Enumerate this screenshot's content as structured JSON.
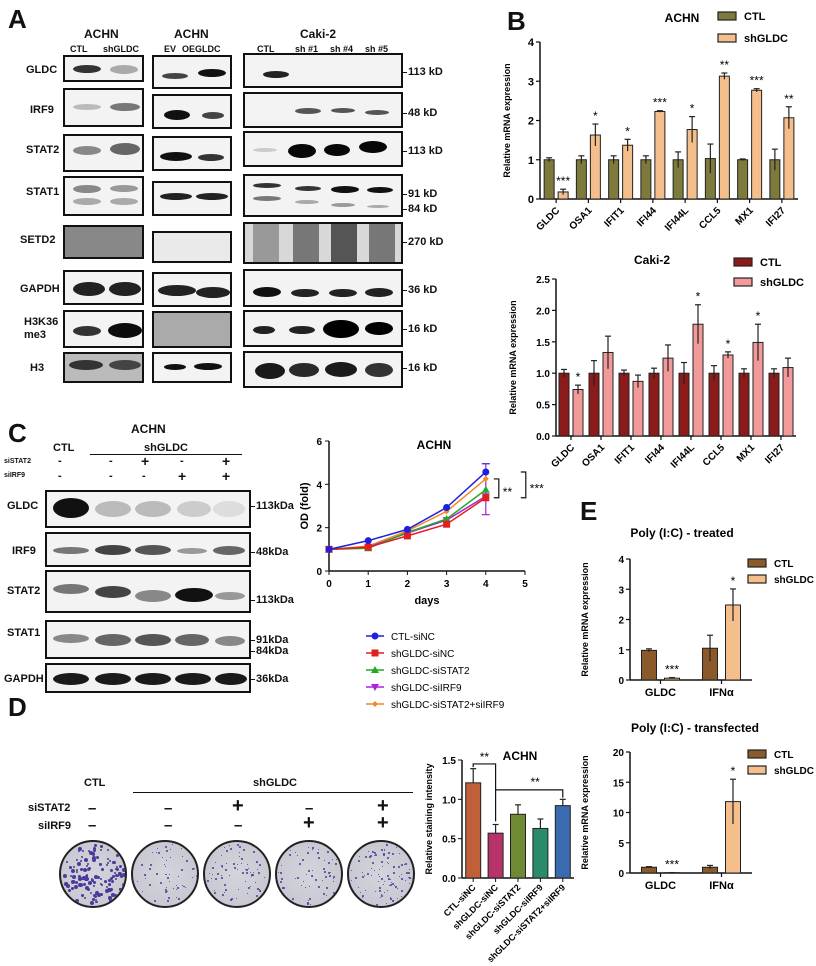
{
  "panels": {
    "A": {
      "letter": "A",
      "groups": [
        {
          "title": "ACHN",
          "lanes": [
            "CTL",
            "shGLDC"
          ]
        },
        {
          "title": "ACHN",
          "lanes": [
            "EV",
            "OEGLDC"
          ]
        },
        {
          "title": "Caki-2",
          "lanes": [
            "CTL",
            "sh #1",
            "sh #4",
            "sh #5"
          ]
        }
      ],
      "rows": [
        {
          "protein": "GLDC",
          "markers": [
            "113 kD"
          ]
        },
        {
          "protein": "IRF9",
          "markers": [
            "48 kD"
          ]
        },
        {
          "protein": "STAT2",
          "markers": [
            "113 kD"
          ]
        },
        {
          "protein": "STAT1",
          "markers": [
            "91 kD",
            "84 kD"
          ]
        },
        {
          "protein": "SETD2",
          "markers": [
            "270 kD"
          ]
        },
        {
          "protein": "GAPDH",
          "markers": [
            "36 kD"
          ]
        },
        {
          "protein": "H3K36\nme3",
          "protein_line1": "H3K36",
          "protein_line2": "me3",
          "markers": [
            "16 kD"
          ]
        },
        {
          "protein": "H3",
          "markers": [
            "16 kD"
          ]
        }
      ]
    },
    "B": {
      "letter": "B"
    },
    "C": {
      "letter": "C",
      "blot_title": "ACHN",
      "ctl_label": "CTL",
      "sh_label": "shGLDC",
      "treatments": [
        {
          "name": "siSTAT2",
          "values": [
            "-",
            "-",
            "+",
            "-",
            "+"
          ]
        },
        {
          "name": "siIRF9",
          "values": [
            "-",
            "-",
            "-",
            "+",
            "+"
          ]
        }
      ],
      "rows": [
        {
          "protein": "GLDC",
          "markers": [
            "113kDa"
          ]
        },
        {
          "protein": "IRF9",
          "markers": [
            "48kDa"
          ]
        },
        {
          "protein": "STAT2",
          "markers": [
            "113kDa"
          ]
        },
        {
          "protein": "STAT1",
          "markers": [
            "91kDa",
            "84kDa"
          ]
        },
        {
          "protein": "GAPDH",
          "markers": [
            "36kDa"
          ]
        }
      ]
    },
    "D": {
      "letter": "D",
      "ctl_label": "CTL",
      "sh_label": "shGLDC",
      "treatments": [
        {
          "name": "siSTAT2",
          "values": [
            "–",
            "–",
            "+",
            "–",
            "+"
          ]
        },
        {
          "name": "siIRF9",
          "values": [
            "–",
            "–",
            "–",
            "+",
            "+"
          ]
        }
      ]
    },
    "E": {
      "letter": "E"
    }
  },
  "chart_data": [
    {
      "id": "B-ACHN",
      "type": "bar",
      "title": "ACHN",
      "xlabel": "",
      "ylabel": "Relative mRNA expression",
      "ylim": [
        0,
        4
      ],
      "yticks": [
        0,
        1,
        2,
        3,
        4
      ],
      "categories": [
        "GLDC",
        "OSA1",
        "IFIT1",
        "IFI44",
        "IFI44L",
        "CCL5",
        "MX1",
        "IFI27"
      ],
      "series": [
        {
          "name": "CTL",
          "color": "#7d7a3c",
          "values": [
            1.0,
            1.0,
            1.0,
            1.0,
            1.0,
            1.03,
            1.0,
            1.0
          ],
          "errors": [
            0.05,
            0.1,
            0.1,
            0.1,
            0.2,
            0.37,
            0.02,
            0.27
          ]
        },
        {
          "name": "shGLDC",
          "color": "#f5bf8c",
          "values": [
            0.18,
            1.63,
            1.37,
            2.23,
            1.77,
            3.13,
            2.77,
            2.07
          ],
          "errors": [
            0.07,
            0.28,
            0.15,
            0.02,
            0.33,
            0.08,
            0.04,
            0.28
          ]
        }
      ],
      "annotations": [
        "***",
        "*",
        "*",
        "***",
        "*",
        "**",
        "***",
        "**"
      ],
      "legend_position": "top-right"
    },
    {
      "id": "B-Caki2",
      "type": "bar",
      "title": "Caki-2",
      "xlabel": "",
      "ylabel": "Relative mRNA expression",
      "ylim": [
        0,
        2.5
      ],
      "yticks": [
        0.0,
        0.5,
        1.0,
        1.5,
        2.0,
        2.5
      ],
      "categories": [
        "GLDC",
        "OSA1",
        "IFIT1",
        "IFI44",
        "IFI44L",
        "CCL5",
        "MX1",
        "IFI27"
      ],
      "series": [
        {
          "name": "CTL",
          "color": "#8b1a1a",
          "values": [
            1.0,
            1.0,
            1.0,
            1.0,
            1.0,
            1.0,
            1.0,
            1.0
          ],
          "errors": [
            0.06,
            0.2,
            0.05,
            0.08,
            0.17,
            0.12,
            0.07,
            0.07
          ]
        },
        {
          "name": "shGLDC",
          "color": "#f29a9a",
          "values": [
            0.74,
            1.33,
            0.87,
            1.24,
            1.78,
            1.29,
            1.49,
            1.09
          ],
          "errors": [
            0.07,
            0.26,
            0.1,
            0.21,
            0.31,
            0.05,
            0.29,
            0.15
          ]
        }
      ],
      "annotations": [
        "*",
        "",
        "",
        "",
        "*",
        "*",
        "*",
        ""
      ],
      "legend_position": "top-right"
    },
    {
      "id": "C-growth",
      "type": "line",
      "title": "ACHN",
      "xlabel": "days",
      "ylabel": "OD (fold)",
      "xlim": [
        0,
        5
      ],
      "ylim": [
        0,
        6
      ],
      "xticks": [
        0,
        1,
        2,
        3,
        4,
        5
      ],
      "yticks": [
        0,
        2,
        4,
        6
      ],
      "x": [
        0,
        1,
        2,
        3,
        4
      ],
      "series": [
        {
          "name": "CTL-siNC",
          "color": "#1f1fe0",
          "marker": "circle",
          "values": [
            1.0,
            1.4,
            1.92,
            2.93,
            4.57
          ]
        },
        {
          "name": "shGLDC-siNC",
          "color": "#e01f1f",
          "marker": "square",
          "values": [
            1.0,
            1.1,
            1.62,
            2.16,
            3.38
          ]
        },
        {
          "name": "shGLDC-siSTAT2",
          "color": "#22aa22",
          "marker": "triangle-up",
          "values": [
            1.0,
            1.05,
            1.78,
            2.4,
            3.75
          ]
        },
        {
          "name": "shGLDC-siIRF9",
          "color": "#aa22dd",
          "marker": "triangle-down",
          "values": [
            1.0,
            1.1,
            1.75,
            2.35,
            3.45
          ]
        },
        {
          "name": "shGLDC-siSTAT2+siIRF9",
          "color": "#f08a24",
          "marker": "diamond",
          "values": [
            1.0,
            1.15,
            1.85,
            2.75,
            4.25
          ]
        }
      ],
      "annotations": [
        "**",
        "***"
      ],
      "legend_position": "bottom"
    },
    {
      "id": "D-staining",
      "type": "bar",
      "title": "ACHN",
      "xlabel": "",
      "ylabel": "Relative staining intensity",
      "ylim": [
        0,
        1.5
      ],
      "yticks": [
        0.0,
        0.5,
        1.0,
        1.5
      ],
      "categories": [
        "CTL-siNC",
        "shGLDC-siNC",
        "shGLDC-siSTAT2",
        "shGLDC-siIRF9",
        "shGLDC-siSTAT2+siIRF9"
      ],
      "colors": [
        "#c0603a",
        "#b8336a",
        "#6f8a32",
        "#2a8a6a",
        "#3a6ab0"
      ],
      "values": [
        1.21,
        0.57,
        0.81,
        0.63,
        0.92
      ],
      "errors": [
        0.18,
        0.11,
        0.12,
        0.12,
        0.08
      ],
      "annotations": [
        "**",
        "**"
      ]
    },
    {
      "id": "E-treated",
      "type": "bar",
      "title": "Poly (I:C) - treated",
      "xlabel": "",
      "ylabel": "Relative mRNA expression",
      "ylim": [
        0,
        4
      ],
      "yticks": [
        0,
        1,
        2,
        3,
        4
      ],
      "categories": [
        "GLDC",
        "IFNα"
      ],
      "series": [
        {
          "name": "CTL",
          "color": "#8b5a2b",
          "values": [
            0.98,
            1.05
          ],
          "errors": [
            0.05,
            0.43
          ]
        },
        {
          "name": "shGLDC",
          "color": "#f5bf8c",
          "values": [
            0.06,
            2.48
          ],
          "errors": [
            0.02,
            0.53
          ]
        }
      ],
      "annotations": [
        "***",
        "*"
      ],
      "legend_position": "top-right"
    },
    {
      "id": "E-transfected",
      "type": "bar",
      "title": "Poly (I:C) - transfected",
      "xlabel": "",
      "ylabel": "Relative mRNA expression",
      "ylim": [
        0,
        20
      ],
      "yticks": [
        0,
        5,
        10,
        15,
        20
      ],
      "categories": [
        "GLDC",
        "IFNα"
      ],
      "series": [
        {
          "name": "CTL",
          "color": "#8b5a2b",
          "values": [
            0.95,
            0.95
          ],
          "errors": [
            0.1,
            0.3
          ]
        },
        {
          "name": "shGLDC",
          "color": "#f5bf8c",
          "values": [
            0.05,
            11.8
          ],
          "errors": [
            0.02,
            3.7
          ]
        }
      ],
      "annotations": [
        "***",
        "*"
      ],
      "legend_position": "top-right"
    }
  ]
}
